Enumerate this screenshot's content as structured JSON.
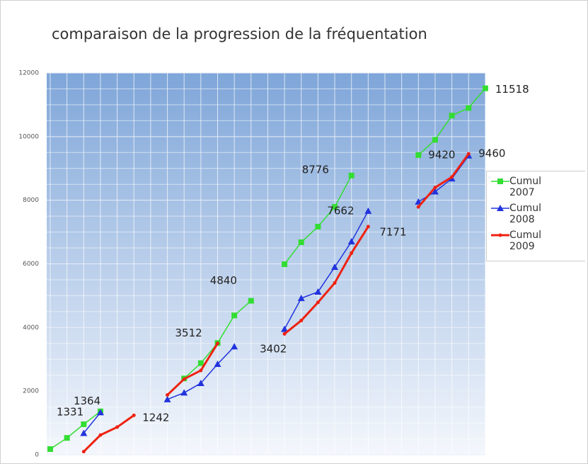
{
  "chart_data": {
    "type": "line",
    "title": "comparaison de la progression de la fréquentation",
    "categories": [
      null,
      null,
      null,
      null,
      null,
      null,
      null,
      null,
      null,
      null,
      null,
      null,
      null,
      null,
      null,
      null,
      null,
      null,
      null,
      null,
      null,
      null,
      null,
      null,
      null,
      null,
      null
    ],
    "series": [
      {
        "name": "Cumul 2007",
        "color": "#33dd33",
        "marker": "square",
        "values": [
          180,
          530,
          960,
          1364,
          null,
          null,
          null,
          null,
          2400,
          2880,
          3512,
          4380,
          4840,
          null,
          5990,
          6680,
          7170,
          7790,
          8776,
          null,
          null,
          null,
          9420,
          9900,
          10660,
          10900,
          11518
        ],
        "value_labels": [
          null,
          null,
          null,
          "1364",
          null,
          null,
          null,
          null,
          null,
          null,
          "3512",
          null,
          "4840",
          null,
          null,
          null,
          null,
          null,
          "8776",
          null,
          null,
          null,
          "9420",
          null,
          null,
          null,
          "11518"
        ]
      },
      {
        "name": "Cumul 2008",
        "color": "#2233dd",
        "marker": "triangle",
        "values": [
          null,
          null,
          680,
          1331,
          null,
          null,
          null,
          1740,
          1950,
          2250,
          2850,
          3402,
          null,
          null,
          3950,
          4920,
          5120,
          5900,
          6700,
          7662,
          null,
          null,
          7950,
          8270,
          8680,
          9400,
          null
        ],
        "value_labels": [
          null,
          null,
          null,
          "1331",
          null,
          null,
          null,
          null,
          null,
          null,
          null,
          "3402",
          null,
          null,
          null,
          null,
          null,
          null,
          null,
          "7662",
          null,
          null,
          null,
          null,
          null,
          null,
          null
        ]
      },
      {
        "name": "Cumul 2009",
        "color": "#ee2211",
        "marker": "circle",
        "values": [
          null,
          null,
          100,
          620,
          870,
          1242,
          null,
          1880,
          2380,
          2650,
          3500,
          null,
          null,
          null,
          3800,
          4220,
          4790,
          5400,
          6340,
          7171,
          null,
          null,
          7790,
          8400,
          8730,
          9460,
          null
        ],
        "value_labels": [
          null,
          null,
          null,
          null,
          null,
          "1242",
          null,
          null,
          null,
          null,
          null,
          null,
          null,
          null,
          null,
          null,
          null,
          null,
          null,
          "7171",
          null,
          null,
          null,
          null,
          null,
          "9460",
          null
        ]
      }
    ],
    "ylim": [
      0,
      12000
    ],
    "yticks": [
      0,
      2000,
      4000,
      6000,
      8000,
      10000,
      12000
    ],
    "grid": true,
    "legend": "right"
  }
}
